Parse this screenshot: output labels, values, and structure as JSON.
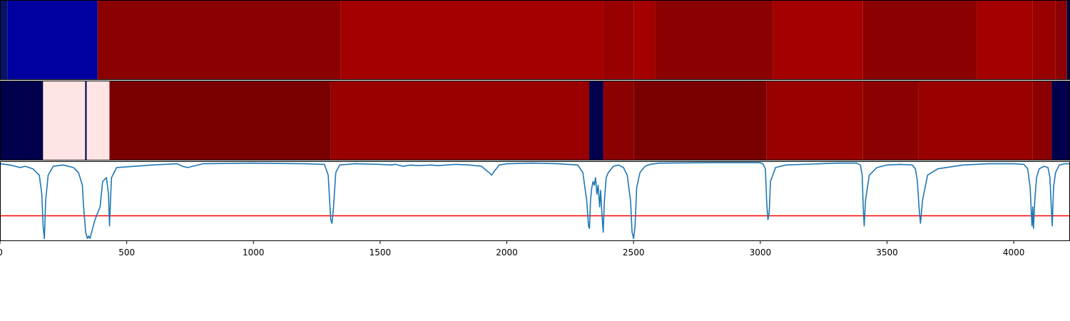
{
  "chart_data": [
    {
      "type": "heatmap",
      "xlim": [
        0,
        4222
      ],
      "segments": [
        {
          "start": 0,
          "end": 30,
          "color": "#0a1466"
        },
        {
          "start": 30,
          "end": 385,
          "color": "#0000a0"
        },
        {
          "start": 385,
          "end": 1345,
          "color": "#8b0000"
        },
        {
          "start": 1345,
          "end": 2380,
          "color": "#a50000"
        },
        {
          "start": 2380,
          "end": 2500,
          "color": "#990000"
        },
        {
          "start": 2500,
          "end": 2585,
          "color": "#a50000"
        },
        {
          "start": 2585,
          "end": 3050,
          "color": "#8b0000"
        },
        {
          "start": 3050,
          "end": 3405,
          "color": "#a50000"
        },
        {
          "start": 3405,
          "end": 3855,
          "color": "#8b0000"
        },
        {
          "start": 3855,
          "end": 4075,
          "color": "#a50000"
        },
        {
          "start": 4075,
          "end": 4165,
          "color": "#990000"
        },
        {
          "start": 4165,
          "end": 4210,
          "color": "#8b0000"
        },
        {
          "start": 4210,
          "end": 4222,
          "color": "#00004d"
        }
      ]
    },
    {
      "type": "heatmap",
      "xlim": [
        0,
        4222
      ],
      "segments": [
        {
          "start": 0,
          "end": 170,
          "color": "#00004d"
        },
        {
          "start": 170,
          "end": 336,
          "color": "#ffe4e4"
        },
        {
          "start": 336,
          "end": 342,
          "color": "#00004d"
        },
        {
          "start": 342,
          "end": 432,
          "color": "#ffe4e4"
        },
        {
          "start": 432,
          "end": 1305,
          "color": "#7a0000"
        },
        {
          "start": 1305,
          "end": 2325,
          "color": "#990000"
        },
        {
          "start": 2325,
          "end": 2380,
          "color": "#00004d"
        },
        {
          "start": 2380,
          "end": 2500,
          "color": "#8b0000"
        },
        {
          "start": 2500,
          "end": 3025,
          "color": "#7a0000"
        },
        {
          "start": 3025,
          "end": 3405,
          "color": "#990000"
        },
        {
          "start": 3405,
          "end": 3625,
          "color": "#8b0000"
        },
        {
          "start": 3625,
          "end": 4075,
          "color": "#990000"
        },
        {
          "start": 4075,
          "end": 4150,
          "color": "#8b0000"
        },
        {
          "start": 4150,
          "end": 4222,
          "color": "#00004d"
        }
      ]
    },
    {
      "type": "line",
      "xlim": [
        0,
        4222
      ],
      "ylim": [
        -0.62,
        0.01
      ],
      "hline": {
        "y": -0.42,
        "color": "#ff0000"
      },
      "series": [
        {
          "color": "#1f77b4",
          "x": [
            0,
            40,
            80,
            100,
            130,
            155,
            165,
            170,
            175,
            180,
            190,
            210,
            250,
            290,
            310,
            325,
            330,
            338,
            345,
            350,
            355,
            375,
            395,
            405,
            420,
            428,
            432,
            436,
            440,
            460,
            600,
            700,
            720,
            740,
            760,
            800,
            1000,
            1200,
            1280,
            1295,
            1305,
            1310,
            1315,
            1325,
            1340,
            1400,
            1500,
            1540,
            1560,
            1590,
            1620,
            1650,
            1700,
            1730,
            1760,
            1800,
            1850,
            1900,
            1930,
            1940,
            1950,
            1970,
            2000,
            2100,
            2200,
            2280,
            2300,
            2315,
            2322,
            2326,
            2330,
            2335,
            2340,
            2345,
            2350,
            2355,
            2360,
            2366,
            2370,
            2375,
            2380,
            2385,
            2392,
            2400,
            2420,
            2440,
            2460,
            2475,
            2488,
            2494,
            2500,
            2506,
            2512,
            2525,
            2545,
            2565,
            2600,
            2800,
            3000,
            3010,
            3020,
            3025,
            3030,
            3035,
            3040,
            3060,
            3100,
            3300,
            3380,
            3395,
            3402,
            3406,
            3410,
            3415,
            3430,
            3460,
            3500,
            3550,
            3600,
            3612,
            3620,
            3626,
            3632,
            3640,
            3660,
            3700,
            3800,
            3900,
            4000,
            4040,
            4055,
            4065,
            4069,
            4072,
            4075,
            4078,
            4083,
            4090,
            4100,
            4120,
            4135,
            4143,
            4148,
            4152,
            4157,
            4165,
            4180,
            4200,
            4222
          ],
          "y": [
            -0.01,
            -0.02,
            -0.04,
            -0.03,
            -0.05,
            -0.1,
            -0.25,
            -0.5,
            -0.6,
            -0.3,
            -0.1,
            -0.03,
            -0.02,
            -0.04,
            -0.08,
            -0.18,
            -0.35,
            -0.55,
            -0.6,
            -0.58,
            -0.6,
            -0.45,
            -0.35,
            -0.15,
            -0.12,
            -0.25,
            -0.5,
            -0.3,
            -0.12,
            -0.04,
            -0.02,
            -0.01,
            -0.03,
            -0.04,
            -0.03,
            -0.01,
            -0.005,
            -0.01,
            -0.015,
            -0.1,
            -0.45,
            -0.48,
            -0.38,
            -0.08,
            -0.02,
            -0.01,
            -0.015,
            -0.02,
            -0.015,
            -0.03,
            -0.02,
            -0.025,
            -0.02,
            -0.025,
            -0.02,
            -0.015,
            -0.02,
            -0.03,
            -0.08,
            -0.1,
            -0.07,
            -0.02,
            -0.01,
            -0.005,
            -0.01,
            -0.02,
            -0.08,
            -0.3,
            -0.5,
            -0.52,
            -0.3,
            -0.2,
            -0.15,
            -0.18,
            -0.12,
            -0.25,
            -0.18,
            -0.35,
            -0.22,
            -0.4,
            -0.55,
            -0.3,
            -0.12,
            -0.08,
            -0.03,
            -0.02,
            -0.04,
            -0.1,
            -0.3,
            -0.55,
            -0.6,
            -0.5,
            -0.2,
            -0.08,
            -0.03,
            -0.015,
            -0.005,
            -0.002,
            -0.002,
            -0.01,
            -0.05,
            -0.3,
            -0.45,
            -0.4,
            -0.15,
            -0.04,
            -0.02,
            -0.005,
            -0.005,
            -0.02,
            -0.1,
            -0.35,
            -0.5,
            -0.3,
            -0.1,
            -0.04,
            -0.02,
            -0.015,
            -0.02,
            -0.05,
            -0.15,
            -0.35,
            -0.48,
            -0.3,
            -0.1,
            -0.05,
            -0.02,
            -0.01,
            -0.01,
            -0.015,
            -0.05,
            -0.2,
            -0.38,
            -0.5,
            -0.35,
            -0.52,
            -0.3,
            -0.12,
            -0.05,
            -0.03,
            -0.04,
            -0.12,
            -0.35,
            -0.5,
            -0.2,
            -0.08,
            -0.02,
            -0.01,
            -0.01
          ]
        }
      ]
    }
  ],
  "x_axis": {
    "ticks": [
      0,
      500,
      1000,
      1500,
      2000,
      2500,
      3000,
      3500,
      4000
    ],
    "tick_labels": [
      "0",
      "500",
      "1000",
      "1500",
      "2000",
      "2500",
      "3000",
      "3500",
      "4000"
    ]
  }
}
